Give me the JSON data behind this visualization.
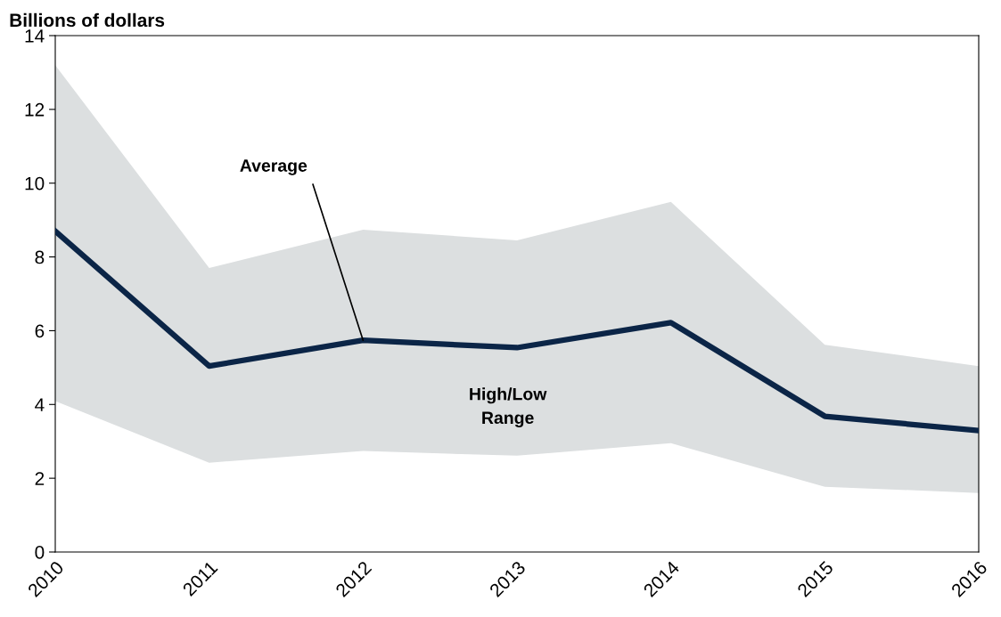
{
  "chart_data": {
    "type": "line",
    "ylabel": "Billions of dollars",
    "x": [
      2010,
      2011,
      2012,
      2013,
      2014,
      2015,
      2016
    ],
    "series": [
      {
        "color": "#0b2547",
        "values": [
          8.7,
          5.04,
          5.74,
          5.54,
          6.22,
          3.68,
          3.29
        ],
        "lower": [
          4.09,
          2.42,
          2.74,
          2.61,
          2.95,
          1.77,
          1.6
        ],
        "upper": [
          13.2,
          7.7,
          8.74,
          8.45,
          9.49,
          5.62,
          5.04
        ]
      }
    ],
    "xlim": [
      2010,
      2016
    ],
    "xticks": [
      2010,
      2011,
      2012,
      2013,
      2014,
      2015,
      2016
    ],
    "ylim": [
      0,
      14
    ],
    "yticks": [
      0,
      2,
      4,
      6,
      8,
      10,
      12,
      14
    ],
    "legend": false,
    "marker": "none",
    "line_style": "solid",
    "annotations": [
      {
        "text": "Average",
        "x": 2012,
        "y": 5.74
      },
      "High/Low\nRange"
    ]
  }
}
